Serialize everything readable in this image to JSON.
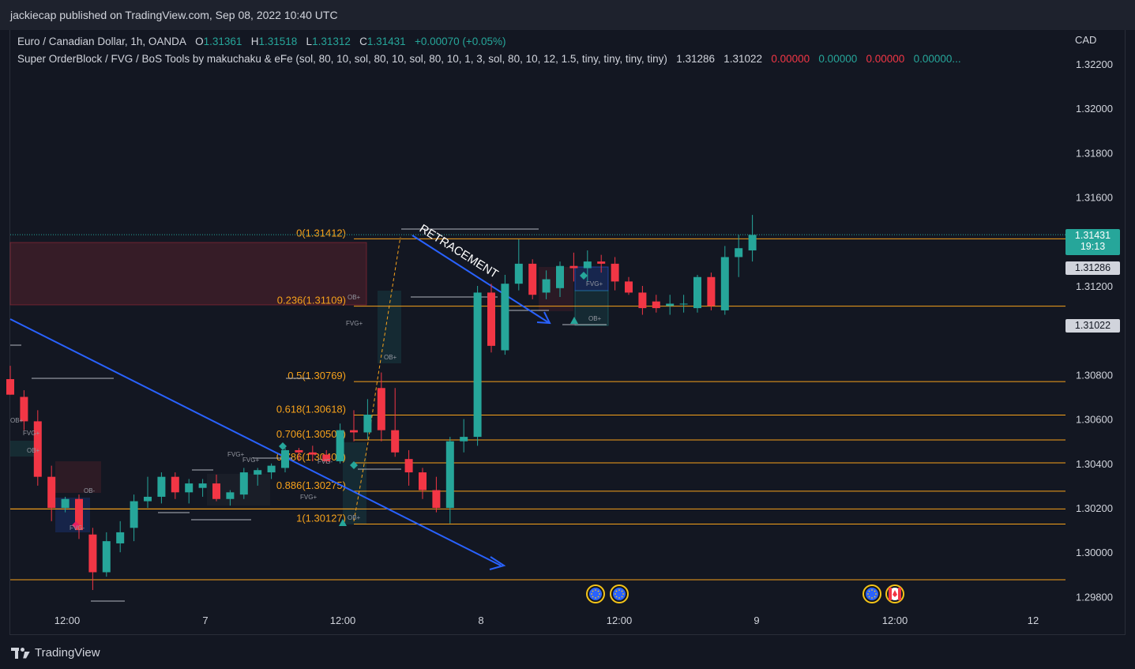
{
  "header": {
    "published_text": "jackiecap published on TradingView.com, Sep 08, 2022 10:40 UTC"
  },
  "legend": {
    "symbol": "Euro / Canadian Dollar, 1h, OANDA",
    "o_label": "O",
    "o_value": "1.31361",
    "h_label": "H",
    "h_value": "1.31518",
    "l_label": "L",
    "l_value": "1.31312",
    "c_label": "C",
    "c_value": "1.31431",
    "change": "+0.00070 (+0.05%)",
    "indicator": "Super OrderBlock / FVG / BoS Tools by makuchaku & eFe (sol, 80, 10, sol, 80, 10, sol, 80, 10, 1, 3, sol, 80, 10, 12, 1.5, tiny, tiny, tiny, tiny)",
    "ind_v1": "1.31286",
    "ind_v2": "1.31022",
    "ind_v3": "0.00000",
    "ind_v4": "0.00000",
    "ind_v5": "0.00000",
    "ind_v6": "0.00000..."
  },
  "axis": {
    "currency": "CAD"
  },
  "price_tags": {
    "last_price": "1.31431",
    "countdown": "19:13",
    "ind_tag1": "1.31286",
    "ind_tag2": "1.31022"
  },
  "footer": {
    "brand": "TradingView"
  },
  "colors": {
    "bull": "#26a69a",
    "bear": "#f23645",
    "fib": "#f7a21b",
    "trend": "#2962ff",
    "bg": "#131722"
  },
  "chart_data": {
    "type": "candlestick",
    "y_ticks": [
      "1.32200",
      "1.32000",
      "1.31800",
      "1.31600",
      "1.31200",
      "1.30800",
      "1.30600",
      "1.30400",
      "1.30200",
      "1.30000",
      "1.29800"
    ],
    "ylim": [
      1.2974,
      1.3245
    ],
    "x_ticks": [
      "12:00",
      "7",
      "12:00",
      "8",
      "12:00",
      "9",
      "12:00",
      "12"
    ],
    "fib_levels": [
      {
        "label": "0(1.31412)",
        "price": 1.31412,
        "show_label": true
      },
      {
        "label": "0.236(1.31109)",
        "price": 1.31109,
        "show_label": true
      },
      {
        "label": "0.5(1.30769)",
        "price": 1.30769,
        "show_label": true
      },
      {
        "label": "0.618(1.30618)",
        "price": 1.30618,
        "show_label": true
      },
      {
        "label": "0.706(1.30506)",
        "price": 1.30506,
        "show_label": true
      },
      {
        "label": "0.786(1.30403)",
        "price": 1.30403,
        "show_label": true
      },
      {
        "label": "0.886(1.30275)",
        "price": 1.30275,
        "show_label": true
      },
      {
        "label": "1(1.30127)",
        "price": 1.30127,
        "show_label": true
      },
      {
        "label": "",
        "price": 1.30195,
        "show_label": false
      },
      {
        "label": "",
        "price": 1.29876,
        "show_label": false
      }
    ],
    "candles": [
      [
        1.3078,
        1.3084,
        1.3071,
        1.3071
      ],
      [
        1.307,
        1.3073,
        1.3055,
        1.3059
      ],
      [
        1.3059,
        1.3064,
        1.303,
        1.3034
      ],
      [
        1.3034,
        1.3039,
        1.3014,
        1.302
      ],
      [
        1.302,
        1.3025,
        1.3018,
        1.3024
      ],
      [
        1.3024,
        1.3026,
        1.3006,
        1.301
      ],
      [
        1.3008,
        1.3011,
        1.2983,
        1.2991
      ],
      [
        1.2991,
        1.3009,
        1.2989,
        1.3005
      ],
      [
        1.3004,
        1.3014,
        1.3,
        1.3009
      ],
      [
        1.3011,
        1.3026,
        1.3005,
        1.3023
      ],
      [
        1.3023,
        1.3034,
        1.302,
        1.3025
      ],
      [
        1.3025,
        1.3036,
        1.3022,
        1.3034
      ],
      [
        1.3034,
        1.3036,
        1.3024,
        1.3027
      ],
      [
        1.3027,
        1.3033,
        1.3022,
        1.3031
      ],
      [
        1.3029,
        1.3033,
        1.3025,
        1.3031
      ],
      [
        1.3031,
        1.3035,
        1.3023,
        1.3024
      ],
      [
        1.3024,
        1.3028,
        1.3021,
        1.3027
      ],
      [
        1.3026,
        1.3038,
        1.3024,
        1.3036
      ],
      [
        1.3035,
        1.3038,
        1.303,
        1.3037
      ],
      [
        1.3036,
        1.304,
        1.3033,
        1.3039
      ],
      [
        1.3038,
        1.3047,
        1.3036,
        1.3046
      ],
      [
        1.3046,
        1.3047,
        1.3041,
        1.3045
      ],
      [
        1.3045,
        1.3048,
        1.3041,
        1.3044
      ],
      [
        1.3044,
        1.3046,
        1.304,
        1.3041
      ],
      [
        1.3041,
        1.3058,
        1.304,
        1.3055
      ],
      [
        1.3055,
        1.3064,
        1.305,
        1.3054
      ],
      [
        1.3054,
        1.3069,
        1.3051,
        1.3062
      ],
      [
        1.3074,
        1.3081,
        1.305,
        1.3055
      ],
      [
        1.3055,
        1.3074,
        1.3043,
        1.3045
      ],
      [
        1.3042,
        1.3046,
        1.303,
        1.3036
      ],
      [
        1.3036,
        1.3038,
        1.3024,
        1.3028
      ],
      [
        1.3028,
        1.3034,
        1.3018,
        1.302
      ],
      [
        1.302,
        1.3052,
        1.3013,
        1.305
      ],
      [
        1.305,
        1.306,
        1.3045,
        1.3052
      ],
      [
        1.3052,
        1.312,
        1.3048,
        1.3117
      ],
      [
        1.3117,
        1.3121,
        1.309,
        1.3093
      ],
      [
        1.3091,
        1.3125,
        1.3089,
        1.3121
      ],
      [
        1.3121,
        1.3141,
        1.3118,
        1.313
      ],
      [
        1.313,
        1.3132,
        1.3114,
        1.3116
      ],
      [
        1.3117,
        1.3127,
        1.3114,
        1.3123
      ],
      [
        1.3119,
        1.3131,
        1.3115,
        1.3129
      ],
      [
        1.3129,
        1.3135,
        1.3122,
        1.3128
      ],
      [
        1.3128,
        1.3136,
        1.3122,
        1.3131
      ],
      [
        1.3131,
        1.3134,
        1.3126,
        1.313
      ],
      [
        1.313,
        1.3133,
        1.3118,
        1.3122
      ],
      [
        1.3122,
        1.3124,
        1.3116,
        1.3117
      ],
      [
        1.3117,
        1.312,
        1.3107,
        1.311
      ],
      [
        1.3113,
        1.3116,
        1.3108,
        1.311
      ],
      [
        1.3111,
        1.3116,
        1.3107,
        1.3112
      ],
      [
        1.3112,
        1.3116,
        1.3108,
        1.3112
      ],
      [
        1.311,
        1.3125,
        1.3108,
        1.3124
      ],
      [
        1.3124,
        1.3126,
        1.3109,
        1.3111
      ],
      [
        1.3109,
        1.3138,
        1.3107,
        1.3133
      ],
      [
        1.3133,
        1.3143,
        1.3124,
        1.3137
      ],
      [
        1.3136,
        1.3152,
        1.3131,
        1.3143
      ]
    ],
    "annotations": [
      {
        "text": "RETRACEMENT"
      },
      {
        "text": "FVG+"
      },
      {
        "text": "FVG-"
      },
      {
        "text": "OB+"
      },
      {
        "text": "OB-"
      }
    ]
  }
}
